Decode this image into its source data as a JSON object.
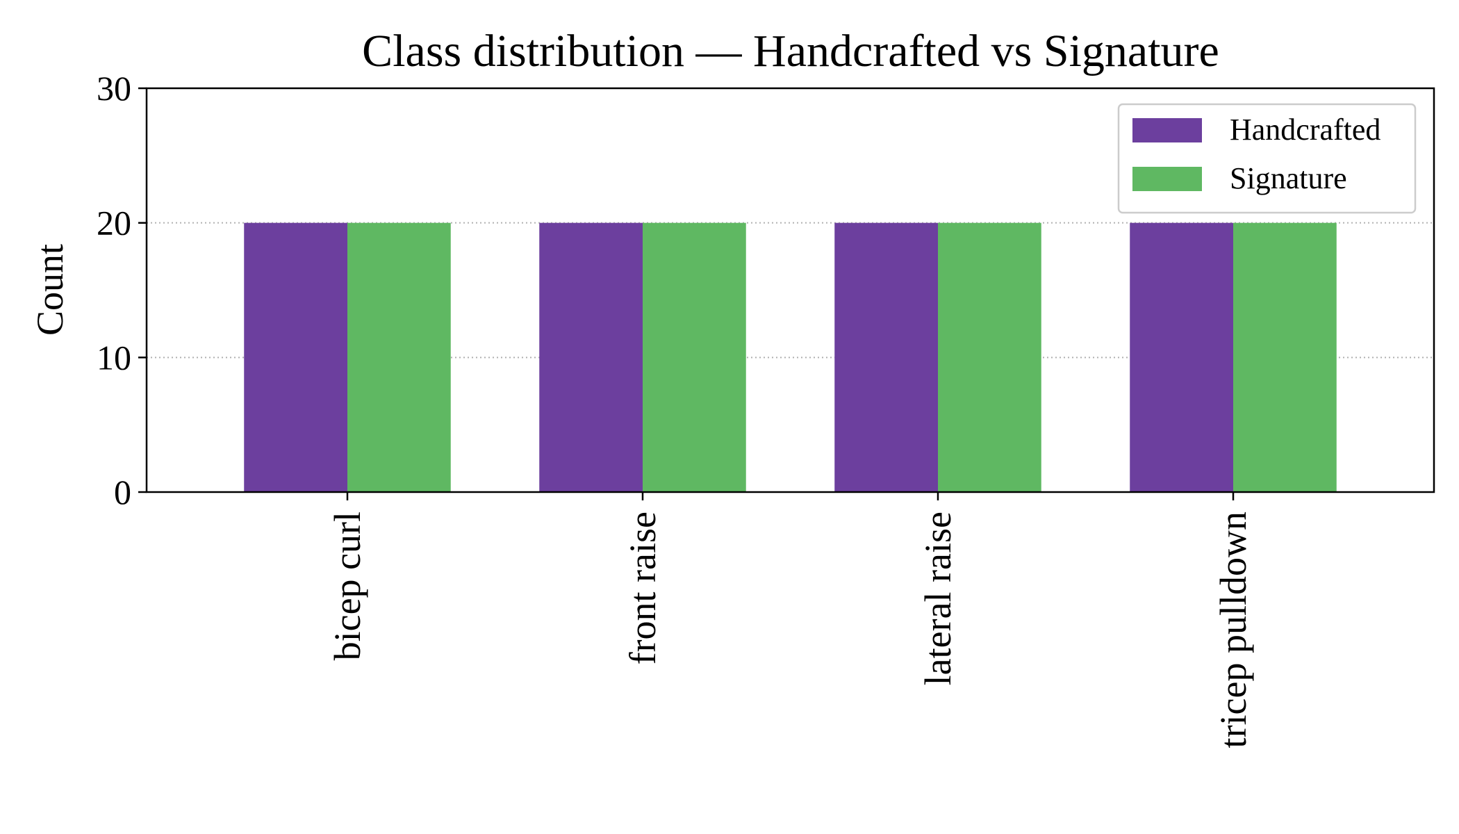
{
  "chart_data": {
    "type": "bar",
    "title": "Class distribution — Handcrafted vs Signature",
    "xlabel": "",
    "ylabel": "Count",
    "categories": [
      "bicep curl",
      "front raise",
      "lateral raise",
      "tricep pulldown"
    ],
    "series": [
      {
        "name": "Handcrafted",
        "color": "#6c3f9e",
        "values": [
          20,
          20,
          20,
          20
        ]
      },
      {
        "name": "Signature",
        "color": "#5fb862",
        "values": [
          20,
          20,
          20,
          20
        ]
      }
    ],
    "ylim": [
      0,
      30
    ],
    "yticks": [
      "0",
      "10",
      "20",
      "30"
    ],
    "grid": "horizontal dotted",
    "legend_position": "top-right"
  }
}
